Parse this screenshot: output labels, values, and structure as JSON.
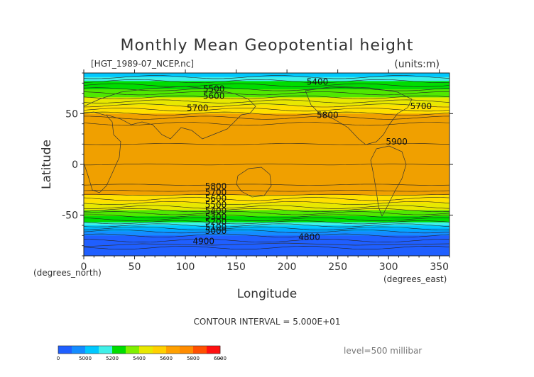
{
  "chart_data": {
    "type": "heatmap",
    "title": "Monthly Mean Geopotential height",
    "file_label": "[HGT_1989-07_NCEP.nc]",
    "units_label": "(units:m)",
    "xlabel": "Longitude",
    "ylabel": "Latitude",
    "x_unit_label": "(degrees_east)",
    "y_unit_label": "(degrees_north)",
    "xlim": [
      0,
      360
    ],
    "ylim": [
      -90,
      90
    ],
    "x_ticks": [
      0,
      50,
      100,
      150,
      200,
      250,
      300,
      350
    ],
    "y_ticks": [
      -50,
      0,
      50
    ],
    "contour_interval_label": "CONTOUR INTERVAL = 5.000E+01",
    "level_label": "level=500 millibar",
    "legend_ticks": [
      "0",
      "5000",
      "5200",
      "5400",
      "5600",
      "5800",
      "6000",
      "∞"
    ],
    "legend_colors": [
      "#1f5fff",
      "#148cff",
      "#00c8ff",
      "#40f0e8",
      "#00dd00",
      "#7ff000",
      "#e8e800",
      "#ffd000",
      "#ffa000",
      "#ff8c00",
      "#ff5000",
      "#ff1010"
    ],
    "zonal_profile": [
      {
        "lat": 90,
        "value": 5250
      },
      {
        "lat": 86,
        "value": 5300
      },
      {
        "lat": 82,
        "value": 5400
      },
      {
        "lat": 78,
        "value": 5450
      },
      {
        "lat": 74,
        "value": 5500
      },
      {
        "lat": 70,
        "value": 5550
      },
      {
        "lat": 66,
        "value": 5600
      },
      {
        "lat": 62,
        "value": 5650
      },
      {
        "lat": 58,
        "value": 5700
      },
      {
        "lat": 54,
        "value": 5750
      },
      {
        "lat": 50,
        "value": 5800
      },
      {
        "lat": 46,
        "value": 5850
      },
      {
        "lat": 40,
        "value": 5880
      },
      {
        "lat": 20,
        "value": 5900
      },
      {
        "lat": 0,
        "value": 5880
      },
      {
        "lat": -20,
        "value": 5860
      },
      {
        "lat": -26,
        "value": 5850
      },
      {
        "lat": -30,
        "value": 5800
      },
      {
        "lat": -34,
        "value": 5750
      },
      {
        "lat": -38,
        "value": 5700
      },
      {
        "lat": -42,
        "value": 5650
      },
      {
        "lat": -45,
        "value": 5600
      },
      {
        "lat": -48,
        "value": 5550
      },
      {
        "lat": -51,
        "value": 5500
      },
      {
        "lat": -54,
        "value": 5450
      },
      {
        "lat": -57,
        "value": 5400
      },
      {
        "lat": -60,
        "value": 5300
      },
      {
        "lat": -63,
        "value": 5200
      },
      {
        "lat": -66,
        "value": 5100
      },
      {
        "lat": -70,
        "value": 5000
      },
      {
        "lat": -75,
        "value": 4950
      },
      {
        "lat": -82,
        "value": 4900
      },
      {
        "lat": -90,
        "value": 4850
      }
    ],
    "contour_labels": [
      {
        "text": "5400",
        "lon": 230,
        "lat": 81
      },
      {
        "text": "5500",
        "lon": 128,
        "lat": 74
      },
      {
        "text": "5600",
        "lon": 128,
        "lat": 67
      },
      {
        "text": "5700",
        "lon": 112,
        "lat": 55
      },
      {
        "text": "5700",
        "lon": 332,
        "lat": 57
      },
      {
        "text": "5800",
        "lon": 240,
        "lat": 48
      },
      {
        "text": "5900",
        "lon": 308,
        "lat": 22
      },
      {
        "text": "5800",
        "lon": 130,
        "lat": -22
      },
      {
        "text": "5700",
        "lon": 130,
        "lat": -28
      },
      {
        "text": "5600",
        "lon": 130,
        "lat": -34
      },
      {
        "text": "5500",
        "lon": 130,
        "lat": -40
      },
      {
        "text": "5400",
        "lon": 130,
        "lat": -46
      },
      {
        "text": "5300",
        "lon": 130,
        "lat": -52
      },
      {
        "text": "5200",
        "lon": 130,
        "lat": -57
      },
      {
        "text": "5100",
        "lon": 130,
        "lat": -62
      },
      {
        "text": "5000",
        "lon": 130,
        "lat": -66
      },
      {
        "text": "4900",
        "lon": 118,
        "lat": -76
      },
      {
        "text": "4800",
        "lon": 222,
        "lat": -72
      }
    ]
  }
}
